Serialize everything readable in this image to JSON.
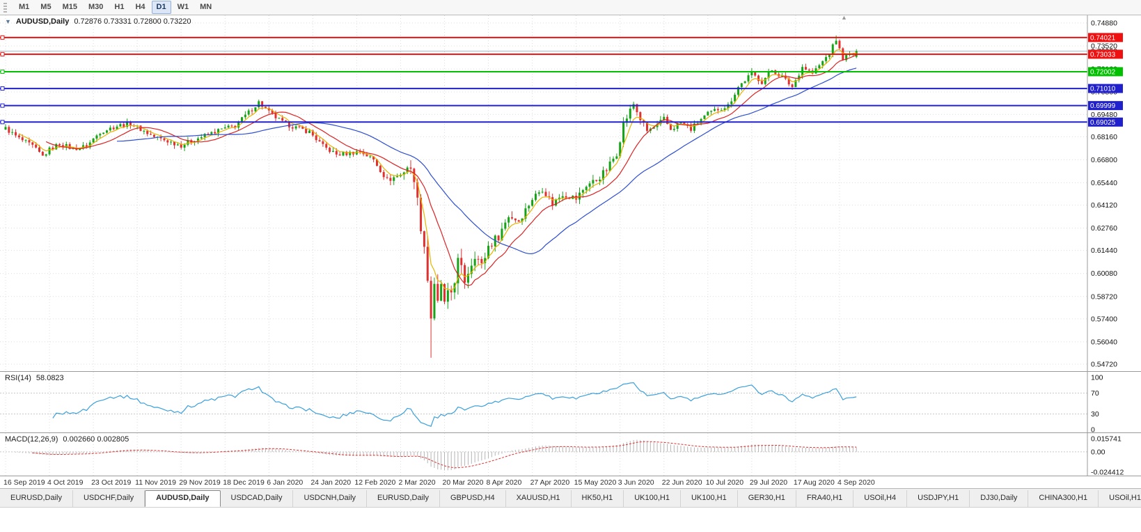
{
  "icons": {
    "oct_arrow": "▼",
    "shift_marker": "▲"
  },
  "toolbar": {
    "timeframes": [
      {
        "label": "M1",
        "active": false
      },
      {
        "label": "M5",
        "active": false
      },
      {
        "label": "M15",
        "active": false
      },
      {
        "label": "M30",
        "active": false
      },
      {
        "label": "H1",
        "active": false
      },
      {
        "label": "H4",
        "active": false
      },
      {
        "label": "D1",
        "active": true
      },
      {
        "label": "W1",
        "active": false
      },
      {
        "label": "MN",
        "active": false
      }
    ]
  },
  "chart": {
    "symbol_label": "AUDUSD,Daily",
    "ohlc_label": "0.72876 0.73331 0.72800 0.73220"
  },
  "chart_data": {
    "type": "candlestick",
    "symbol": "AUDUSD",
    "timeframe": "Daily",
    "ohlc": {
      "open": 0.72876,
      "high": 0.73331,
      "low": 0.728,
      "close": 0.7322
    },
    "current_price": 0.7322,
    "x_labels": [
      "16 Sep 2019",
      "4 Oct 2019",
      "23 Oct 2019",
      "11 Nov 2019",
      "29 Nov 2019",
      "18 Dec 2019",
      "6 Jan 2020",
      "24 Jan 2020",
      "12 Feb 2020",
      "2 Mar 2020",
      "20 Mar 2020",
      "8 Apr 2020",
      "27 Apr 2020",
      "15 May 2020",
      "3 Jun 2020",
      "22 Jun 2020",
      "10 Jul 2020",
      "29 Jul 2020",
      "17 Aug 2020",
      "4 Sep 2020"
    ],
    "bars_per_label": 13,
    "bar_count": 253,
    "price_ticks": [
      0.7488,
      0.7352,
      0.7216,
      0.708,
      0.6948,
      0.6816,
      0.668,
      0.6544,
      0.6412,
      0.6276,
      0.6144,
      0.6008,
      0.5872,
      0.574,
      0.5604,
      0.5472
    ],
    "hlines": [
      {
        "price": 0.74021,
        "label": "0.74021",
        "color": "#ee1111",
        "width": 2
      },
      {
        "price": 0.73033,
        "label": "0.73033",
        "color": "#ee1111",
        "width": 2
      },
      {
        "price": 0.72002,
        "label": "0.72002",
        "color": "#00c000",
        "width": 2
      },
      {
        "price": 0.7101,
        "label": "0.71010",
        "color": "#2020cc",
        "width": 2
      },
      {
        "price": 0.69999,
        "label": "0.69999",
        "color": "#2020cc",
        "width": 2
      },
      {
        "price": 0.69025,
        "label": "0.69025",
        "color": "#2020cc",
        "width": 2
      }
    ],
    "colors": {
      "up": "#17a317",
      "down": "#e03030",
      "grid": "#dcdcdc",
      "bid_line": "#aab4c0",
      "separator": "#9a9a9a"
    },
    "close_anchors": [
      [
        0,
        0.6865
      ],
      [
        4,
        0.6805
      ],
      [
        8,
        0.676
      ],
      [
        11,
        0.67
      ],
      [
        13,
        0.674
      ],
      [
        16,
        0.6775
      ],
      [
        20,
        0.6745
      ],
      [
        24,
        0.676
      ],
      [
        28,
        0.6845
      ],
      [
        33,
        0.688
      ],
      [
        37,
        0.6895
      ],
      [
        40,
        0.686
      ],
      [
        44,
        0.6815
      ],
      [
        48,
        0.679
      ],
      [
        52,
        0.6765
      ],
      [
        56,
        0.68
      ],
      [
        60,
        0.683
      ],
      [
        64,
        0.686
      ],
      [
        68,
        0.688
      ],
      [
        72,
        0.696
      ],
      [
        75,
        0.702
      ],
      [
        78,
        0.696
      ],
      [
        82,
        0.69
      ],
      [
        86,
        0.687
      ],
      [
        90,
        0.6845
      ],
      [
        94,
        0.676
      ],
      [
        98,
        0.671
      ],
      [
        102,
        0.672
      ],
      [
        105,
        0.673
      ],
      [
        109,
        0.668
      ],
      [
        113,
        0.656
      ],
      [
        117,
        0.659
      ],
      [
        119,
        0.664
      ],
      [
        121,
        0.658
      ],
      [
        122,
        0.643
      ],
      [
        123,
        0.63
      ],
      [
        124,
        0.618
      ],
      [
        125,
        0.598
      ],
      [
        126,
        0.576
      ],
      [
        127,
        0.589
      ],
      [
        128,
        0.58
      ],
      [
        129,
        0.595
      ],
      [
        130,
        0.58
      ],
      [
        132,
        0.59
      ],
      [
        134,
        0.607
      ],
      [
        136,
        0.597
      ],
      [
        139,
        0.613
      ],
      [
        141,
        0.605
      ],
      [
        143,
        0.617
      ],
      [
        146,
        0.623
      ],
      [
        149,
        0.635
      ],
      [
        152,
        0.632
      ],
      [
        156,
        0.645
      ],
      [
        159,
        0.651
      ],
      [
        162,
        0.642
      ],
      [
        165,
        0.648
      ],
      [
        169,
        0.645
      ],
      [
        172,
        0.653
      ],
      [
        175,
        0.656
      ],
      [
        178,
        0.662
      ],
      [
        181,
        0.672
      ],
      [
        183,
        0.689
      ],
      [
        186,
        0.701
      ],
      [
        188,
        0.692
      ],
      [
        190,
        0.685
      ],
      [
        193,
        0.688
      ],
      [
        195,
        0.692
      ],
      [
        197,
        0.686
      ],
      [
        200,
        0.69
      ],
      [
        203,
        0.686
      ],
      [
        206,
        0.692
      ],
      [
        208,
        0.695
      ],
      [
        211,
        0.698
      ],
      [
        214,
        0.7
      ],
      [
        217,
        0.711
      ],
      [
        221,
        0.719
      ],
      [
        224,
        0.714
      ],
      [
        227,
        0.721
      ],
      [
        230,
        0.717
      ],
      [
        233,
        0.711
      ],
      [
        236,
        0.723
      ],
      [
        239,
        0.719
      ],
      [
        242,
        0.726
      ],
      [
        244,
        0.731
      ],
      [
        246,
        0.739
      ],
      [
        247,
        0.733
      ],
      [
        248,
        0.728
      ],
      [
        250,
        0.73
      ],
      [
        252,
        0.7322
      ]
    ],
    "vol_anchors": [
      [
        0,
        0.0045
      ],
      [
        110,
        0.0048
      ],
      [
        118,
        0.007
      ],
      [
        122,
        0.013
      ],
      [
        125,
        0.022
      ],
      [
        127,
        0.026
      ],
      [
        131,
        0.02
      ],
      [
        136,
        0.014
      ],
      [
        143,
        0.01
      ],
      [
        150,
        0.008
      ],
      [
        160,
        0.0065
      ],
      [
        182,
        0.0075
      ],
      [
        190,
        0.006
      ],
      [
        210,
        0.005
      ],
      [
        252,
        0.0045
      ]
    ],
    "spikes": [
      {
        "bar": 75,
        "high": 0.7032
      },
      {
        "bar": 126,
        "low": 0.551
      },
      {
        "bar": 186,
        "high": 0.7013
      },
      {
        "bar": 246,
        "high": 0.7414
      }
    ],
    "moving_averages": [
      {
        "type": "ema",
        "period": 5,
        "color": "#e6b400"
      },
      {
        "type": "sma",
        "period": 13,
        "color": "#dd2222"
      },
      {
        "type": "sma",
        "period": 34,
        "color": "#2e4fd0"
      }
    ],
    "rsi": {
      "name_label": "RSI(14)",
      "value_label": "58.0823",
      "period": 14,
      "ticks": [
        100,
        70,
        30,
        0
      ],
      "levels": [
        70,
        30
      ],
      "color": "#3aa0dc"
    },
    "macd": {
      "name_label": "MACD(12,26,9)",
      "value_label": "0.002660 0.002805",
      "fast": 12,
      "slow": 26,
      "signal": 9,
      "ticks": [
        0.015741,
        0.0,
        -0.024412
      ],
      "tick_labels": [
        "0.015741",
        "0.00",
        "-0.024412"
      ],
      "hist_color": "#b4b4b4",
      "signal_color": "#e03030"
    }
  },
  "tabs": {
    "items": [
      "EURUSD,Daily",
      "USDCHF,Daily",
      "AUDUSD,Daily",
      "USDCAD,Daily",
      "USDCNH,Daily",
      "EURUSD,Daily",
      "GBPUSD,H4",
      "XAUUSD,H1",
      "HK50,H1",
      "UK100,H1",
      "UK100,H1",
      "GER30,H1",
      "FRA40,H1",
      "USOil,H4",
      "USDJPY,H1",
      "DJ30,Daily",
      "CHINA300,H1",
      "USOil,H1"
    ],
    "active_index": 2
  }
}
